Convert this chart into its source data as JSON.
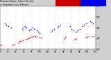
{
  "title_text": "Milwaukee Weather Outdoor Humidity vs Temperature Every 5 Minutes",
  "bg_color": "#d0d0d0",
  "plot_bg": "#ffffff",
  "grid_color": "#b0b0b0",
  "blue_color": "#0000ee",
  "red_color": "#cc0000",
  "legend_red_color": "#cc0000",
  "legend_blue_color": "#0000ee",
  "blue_points": [
    [
      8,
      68
    ],
    [
      10,
      65
    ],
    [
      13,
      63
    ],
    [
      17,
      60
    ],
    [
      35,
      58
    ],
    [
      37,
      60
    ],
    [
      39,
      62
    ],
    [
      41,
      60
    ],
    [
      46,
      55
    ],
    [
      48,
      57
    ],
    [
      50,
      60
    ],
    [
      53,
      58
    ],
    [
      58,
      55
    ],
    [
      60,
      52
    ],
    [
      62,
      50
    ],
    [
      80,
      52
    ],
    [
      82,
      55
    ],
    [
      85,
      58
    ],
    [
      90,
      60
    ],
    [
      92,
      62
    ],
    [
      95,
      65
    ],
    [
      110,
      62
    ],
    [
      112,
      58
    ],
    [
      115,
      55
    ],
    [
      120,
      52
    ],
    [
      122,
      55
    ],
    [
      125,
      58
    ],
    [
      130,
      62
    ],
    [
      132,
      65
    ],
    [
      135,
      68
    ],
    [
      142,
      72
    ],
    [
      144,
      70
    ],
    [
      146,
      68
    ]
  ],
  "red_points": [
    [
      0,
      28
    ],
    [
      2,
      28
    ],
    [
      20,
      28
    ],
    [
      22,
      30
    ],
    [
      28,
      32
    ],
    [
      30,
      34
    ],
    [
      32,
      35
    ],
    [
      34,
      36
    ],
    [
      36,
      37
    ],
    [
      40,
      38
    ],
    [
      42,
      39
    ],
    [
      44,
      40
    ],
    [
      46,
      41
    ],
    [
      48,
      42
    ],
    [
      50,
      43
    ],
    [
      52,
      44
    ],
    [
      54,
      45
    ],
    [
      56,
      44
    ],
    [
      58,
      43
    ],
    [
      62,
      42
    ],
    [
      64,
      41
    ],
    [
      100,
      40
    ],
    [
      102,
      42
    ],
    [
      118,
      38
    ],
    [
      120,
      40
    ],
    [
      135,
      42
    ],
    [
      137,
      43
    ],
    [
      140,
      44
    ],
    [
      145,
      44
    ],
    [
      147,
      45
    ]
  ],
  "xlim": [
    0,
    150
  ],
  "ylim": [
    20,
    100
  ],
  "ytick_positions": [
    20,
    40,
    60,
    80,
    100
  ],
  "ytick_labels": [
    "20",
    "40",
    "60",
    "80",
    "100"
  ],
  "xtick_positions": [
    0,
    12,
    25,
    37,
    50,
    62,
    75,
    87,
    100,
    112,
    125,
    137,
    150
  ],
  "xtick_labels": [
    "12a",
    "2a",
    "4a",
    "6a",
    "8a",
    "10a",
    "12p",
    "2p",
    "4p",
    "6p",
    "8p",
    "10p",
    "12a"
  ]
}
